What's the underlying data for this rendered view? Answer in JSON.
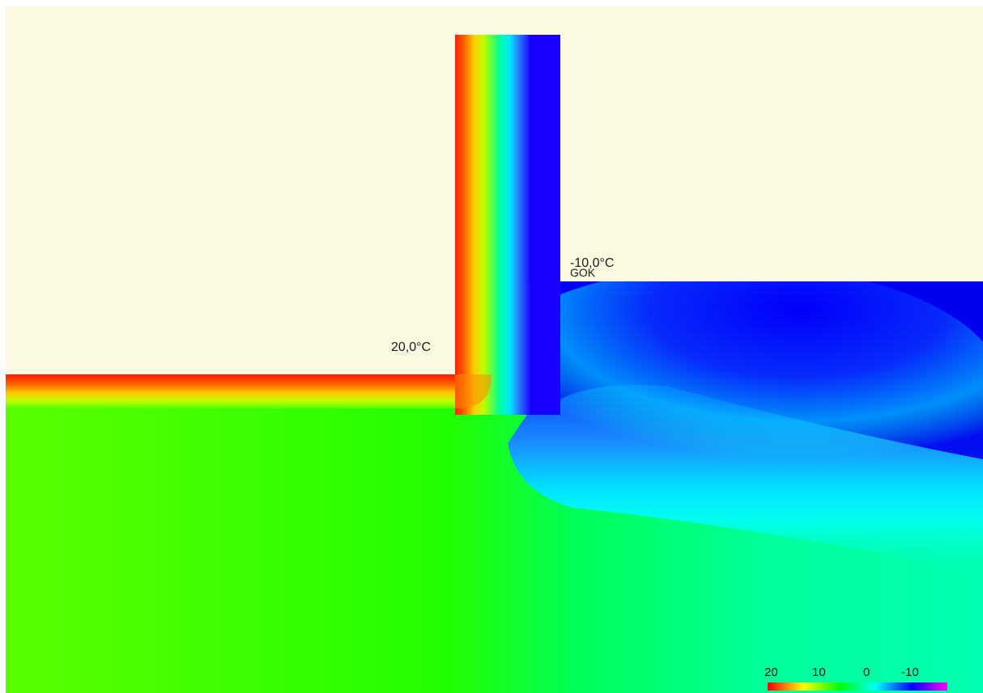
{
  "annotations": {
    "interior_temp": "20,0°C",
    "exterior_temp": "-10,0°C",
    "ground_level": "GOK"
  },
  "legend": {
    "ticks": [
      "20",
      "10",
      "0",
      "-10"
    ],
    "colors": [
      "#ff0000",
      "#ffff00",
      "#00ff00",
      "#00ffff",
      "#0000ff",
      "#ff00ff"
    ]
  },
  "colors": {
    "background": "#fcf9e1",
    "warm": "#ff0000",
    "cold": "#0000ff"
  }
}
